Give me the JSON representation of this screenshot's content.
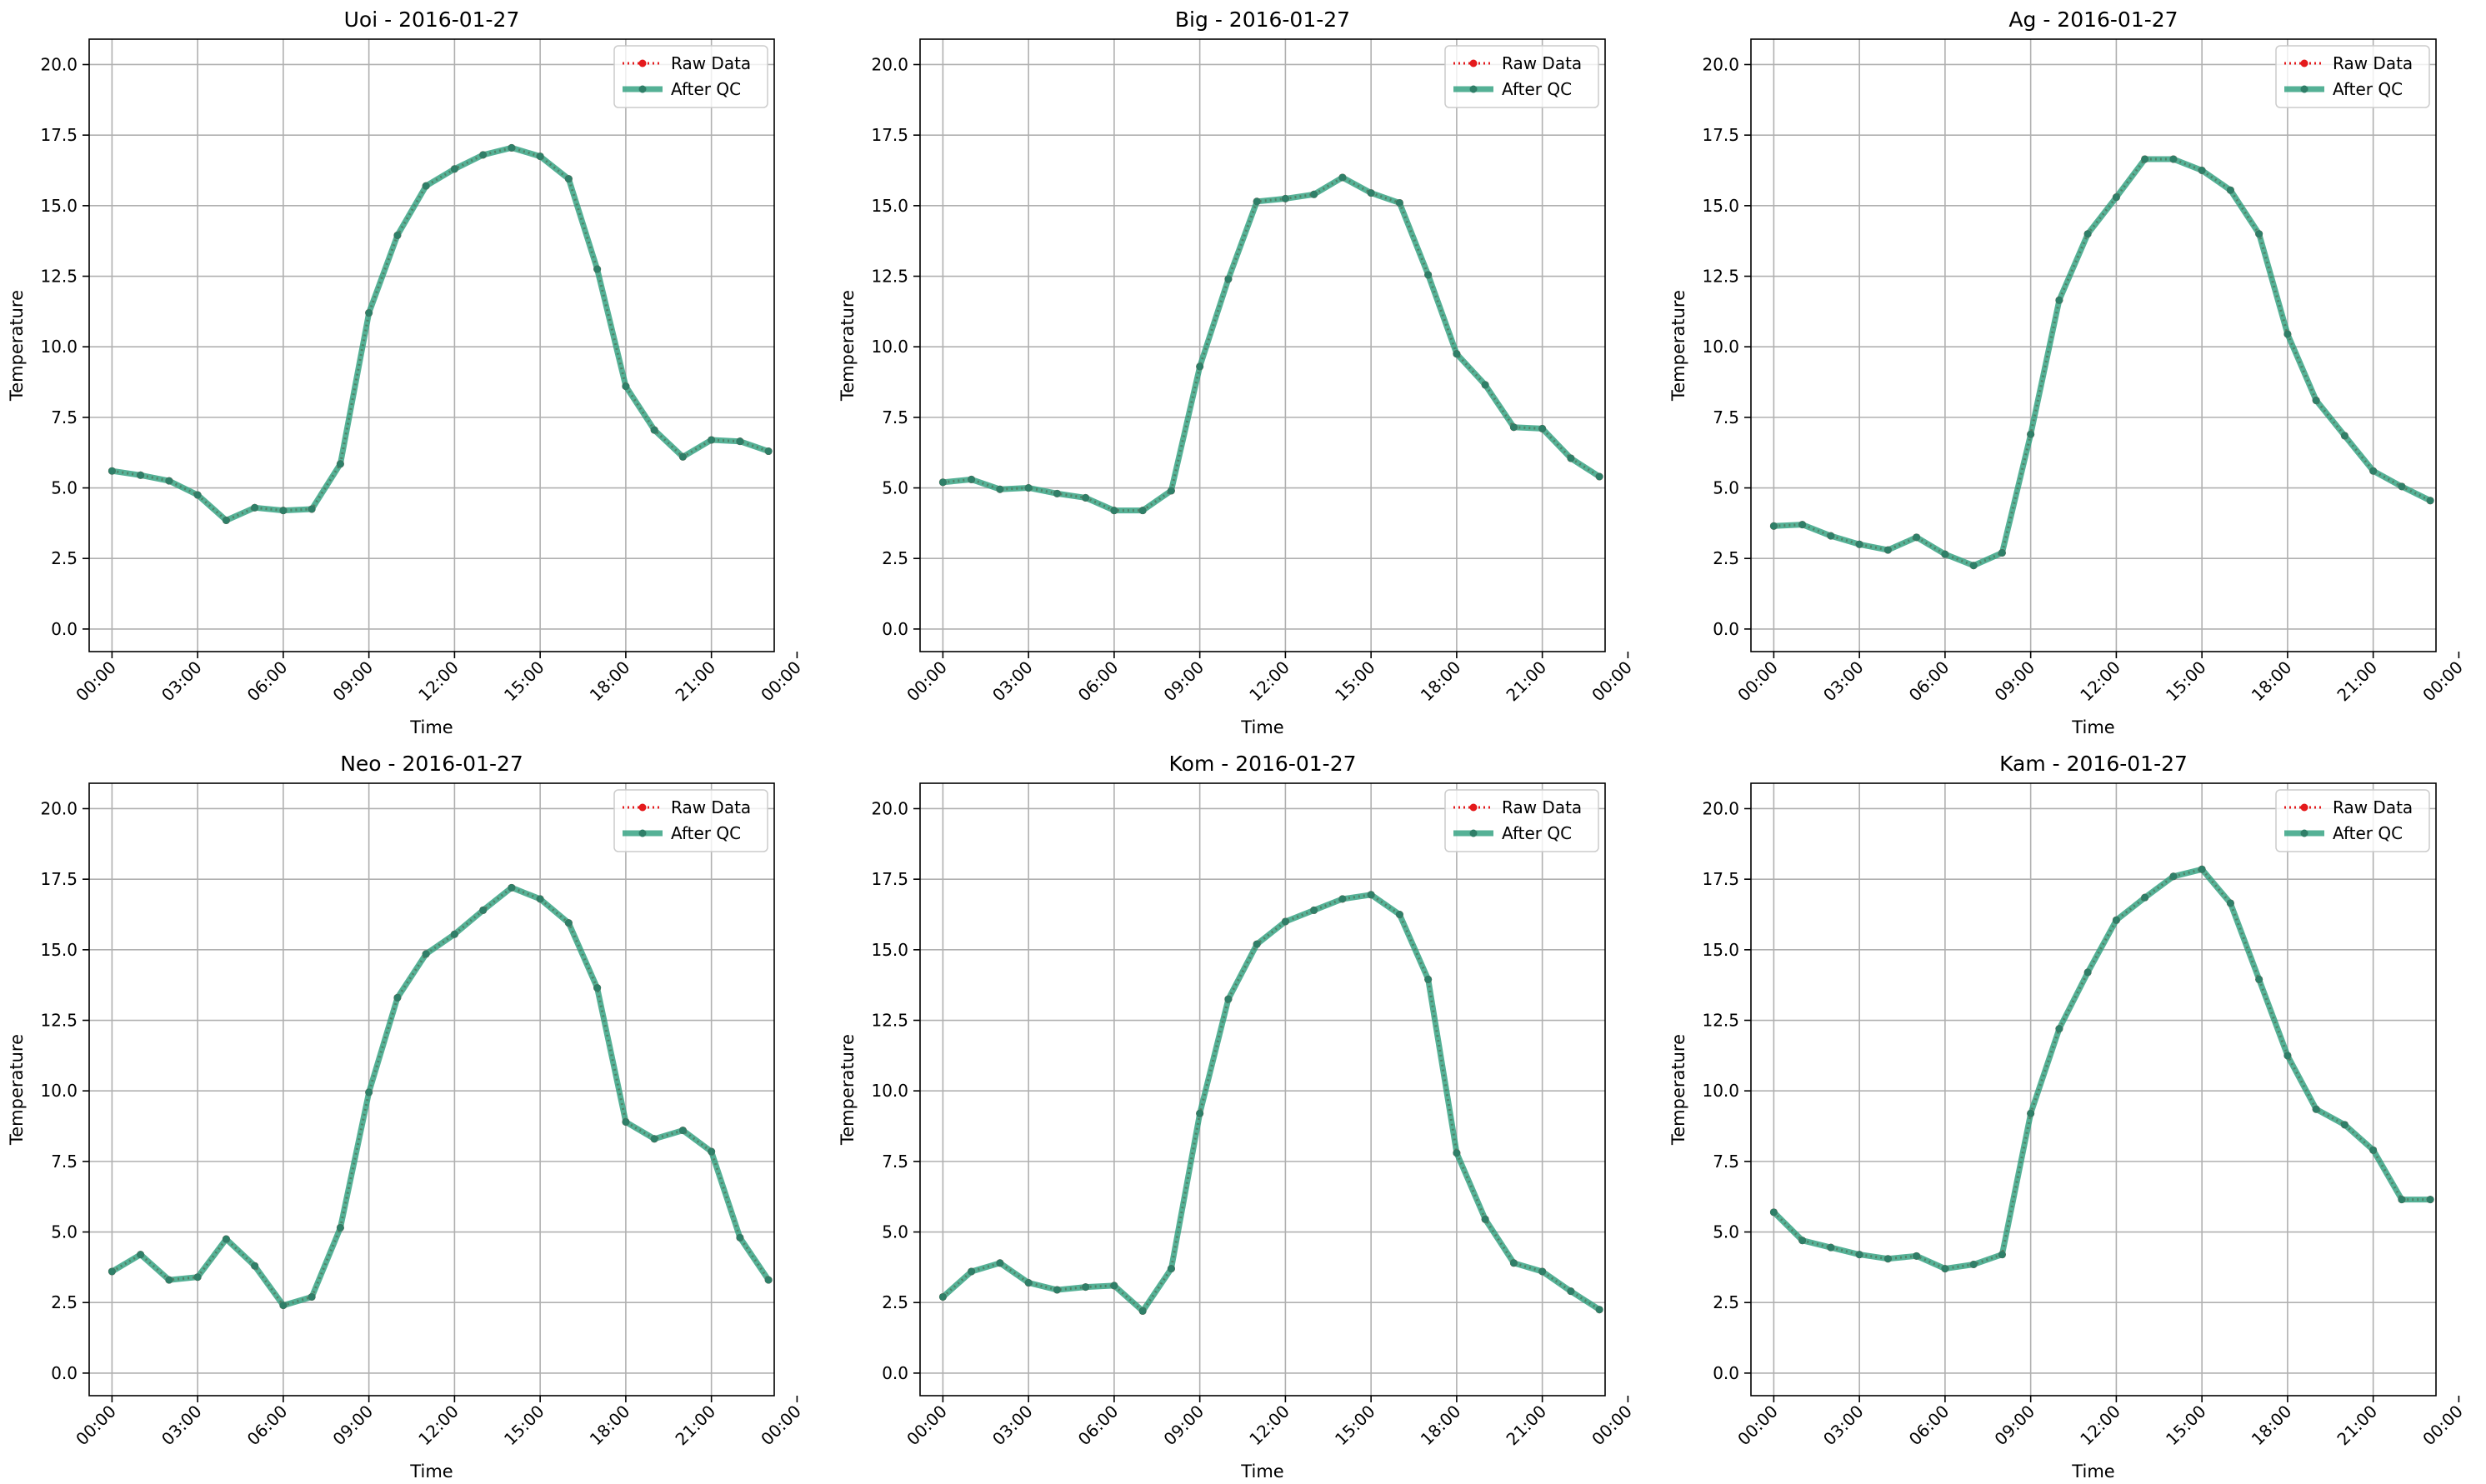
{
  "chart_data": [
    {
      "type": "line",
      "title": "Uoi - 2016-01-27",
      "xlabel": "Time",
      "ylabel": "Temperature",
      "ylim": [
        -0.8,
        20.9
      ],
      "xlim": [
        -0.8,
        23.2
      ],
      "x": [
        0,
        1,
        2,
        3,
        4,
        5,
        6,
        7,
        8,
        9,
        10,
        11,
        12,
        13,
        14,
        15,
        16,
        17,
        18,
        19,
        20,
        21,
        22,
        23
      ],
      "x_ticks": [
        0,
        3,
        6,
        9,
        12,
        15,
        18,
        21,
        24
      ],
      "x_tick_labels": [
        "00:00",
        "03:00",
        "06:00",
        "09:00",
        "12:00",
        "15:00",
        "18:00",
        "21:00",
        "00:00"
      ],
      "y_ticks": [
        0,
        2.5,
        5,
        7.5,
        10,
        12.5,
        15,
        17.5,
        20
      ],
      "y_tick_labels": [
        "0.0",
        "2.5",
        "5.0",
        "7.5",
        "10.0",
        "12.5",
        "15.0",
        "17.5",
        "20.0"
      ],
      "grid": true,
      "legend_position": "top-right",
      "series": [
        {
          "name": "Raw Data",
          "color": "#e41a1c",
          "style": "dotted",
          "values": [
            5.6,
            5.45,
            5.25,
            4.75,
            3.85,
            4.3,
            4.2,
            4.25,
            5.85,
            11.2,
            13.95,
            15.7,
            16.3,
            16.8,
            17.05,
            16.75,
            15.95,
            12.75,
            8.6,
            7.05,
            6.1,
            6.7,
            6.65,
            6.3
          ]
        },
        {
          "name": "After QC",
          "color": "#2a9d7c",
          "style": "solid",
          "values": [
            5.6,
            5.45,
            5.25,
            4.75,
            3.85,
            4.3,
            4.2,
            4.25,
            5.85,
            11.2,
            13.95,
            15.7,
            16.3,
            16.8,
            17.05,
            16.75,
            15.95,
            12.75,
            8.6,
            7.05,
            6.1,
            6.7,
            6.65,
            6.3
          ]
        }
      ]
    },
    {
      "type": "line",
      "title": "Big - 2016-01-27",
      "xlabel": "Time",
      "ylabel": "Temperature",
      "ylim": [
        -0.8,
        20.9
      ],
      "xlim": [
        -0.8,
        23.2
      ],
      "x": [
        0,
        1,
        2,
        3,
        4,
        5,
        6,
        7,
        8,
        9,
        10,
        11,
        12,
        13,
        14,
        15,
        16,
        17,
        18,
        19,
        20,
        21,
        22,
        23
      ],
      "x_ticks": [
        0,
        3,
        6,
        9,
        12,
        15,
        18,
        21,
        24
      ],
      "x_tick_labels": [
        "00:00",
        "03:00",
        "06:00",
        "09:00",
        "12:00",
        "15:00",
        "18:00",
        "21:00",
        "00:00"
      ],
      "y_ticks": [
        0,
        2.5,
        5,
        7.5,
        10,
        12.5,
        15,
        17.5,
        20
      ],
      "y_tick_labels": [
        "0.0",
        "2.5",
        "5.0",
        "7.5",
        "10.0",
        "12.5",
        "15.0",
        "17.5",
        "20.0"
      ],
      "grid": true,
      "legend_position": "top-right",
      "series": [
        {
          "name": "Raw Data",
          "color": "#e41a1c",
          "style": "dotted",
          "values": [
            5.2,
            5.3,
            4.95,
            5.0,
            4.8,
            4.65,
            4.2,
            4.2,
            4.9,
            9.3,
            12.4,
            15.15,
            15.25,
            15.4,
            16.0,
            15.45,
            15.1,
            12.55,
            9.75,
            8.65,
            7.15,
            7.1,
            6.05,
            5.4
          ]
        },
        {
          "name": "After QC",
          "color": "#2a9d7c",
          "style": "solid",
          "values": [
            5.2,
            5.3,
            4.95,
            5.0,
            4.8,
            4.65,
            4.2,
            4.2,
            4.9,
            9.3,
            12.4,
            15.15,
            15.25,
            15.4,
            16.0,
            15.45,
            15.1,
            12.55,
            9.75,
            8.65,
            7.15,
            7.1,
            6.05,
            5.4
          ]
        }
      ]
    },
    {
      "type": "line",
      "title": "Ag - 2016-01-27",
      "xlabel": "Time",
      "ylabel": "Temperature",
      "ylim": [
        -0.8,
        20.9
      ],
      "xlim": [
        -0.8,
        23.2
      ],
      "x": [
        0,
        1,
        2,
        3,
        4,
        5,
        6,
        7,
        8,
        9,
        10,
        11,
        12,
        13,
        14,
        15,
        16,
        17,
        18,
        19,
        20,
        21,
        22,
        23
      ],
      "x_ticks": [
        0,
        3,
        6,
        9,
        12,
        15,
        18,
        21,
        24
      ],
      "x_tick_labels": [
        "00:00",
        "03:00",
        "06:00",
        "09:00",
        "12:00",
        "15:00",
        "18:00",
        "21:00",
        "00:00"
      ],
      "y_ticks": [
        0,
        2.5,
        5,
        7.5,
        10,
        12.5,
        15,
        17.5,
        20
      ],
      "y_tick_labels": [
        "0.0",
        "2.5",
        "5.0",
        "7.5",
        "10.0",
        "12.5",
        "15.0",
        "17.5",
        "20.0"
      ],
      "grid": true,
      "legend_position": "top-right",
      "series": [
        {
          "name": "Raw Data",
          "color": "#e41a1c",
          "style": "dotted",
          "values": [
            3.65,
            3.7,
            3.3,
            3.0,
            2.8,
            3.25,
            2.65,
            2.25,
            2.7,
            6.9,
            11.65,
            14.0,
            15.3,
            16.65,
            16.65,
            16.25,
            15.55,
            14.0,
            10.45,
            8.1,
            6.85,
            5.6,
            5.05,
            4.55
          ]
        },
        {
          "name": "After QC",
          "color": "#2a9d7c",
          "style": "solid",
          "values": [
            3.65,
            3.7,
            3.3,
            3.0,
            2.8,
            3.25,
            2.65,
            2.25,
            2.7,
            6.9,
            11.65,
            14.0,
            15.3,
            16.65,
            16.65,
            16.25,
            15.55,
            14.0,
            10.45,
            8.1,
            6.85,
            5.6,
            5.05,
            4.55
          ]
        }
      ]
    },
    {
      "type": "line",
      "title": "Neo - 2016-01-27",
      "xlabel": "Time",
      "ylabel": "Temperature",
      "ylim": [
        -0.8,
        20.9
      ],
      "xlim": [
        -0.8,
        23.2
      ],
      "x": [
        0,
        1,
        2,
        3,
        4,
        5,
        6,
        7,
        8,
        9,
        10,
        11,
        12,
        13,
        14,
        15,
        16,
        17,
        18,
        19,
        20,
        21,
        22,
        23
      ],
      "x_ticks": [
        0,
        3,
        6,
        9,
        12,
        15,
        18,
        21,
        24
      ],
      "x_tick_labels": [
        "00:00",
        "03:00",
        "06:00",
        "09:00",
        "12:00",
        "15:00",
        "18:00",
        "21:00",
        "00:00"
      ],
      "y_ticks": [
        0,
        2.5,
        5,
        7.5,
        10,
        12.5,
        15,
        17.5,
        20
      ],
      "y_tick_labels": [
        "0.0",
        "2.5",
        "5.0",
        "7.5",
        "10.0",
        "12.5",
        "15.0",
        "17.5",
        "20.0"
      ],
      "grid": true,
      "legend_position": "top-right",
      "series": [
        {
          "name": "Raw Data",
          "color": "#e41a1c",
          "style": "dotted",
          "values": [
            3.6,
            4.2,
            3.3,
            3.4,
            4.75,
            3.8,
            2.4,
            2.7,
            5.15,
            9.95,
            13.3,
            14.85,
            15.55,
            16.4,
            17.2,
            16.8,
            15.95,
            13.65,
            8.9,
            8.3,
            8.6,
            7.85,
            4.8,
            3.3
          ]
        },
        {
          "name": "After QC",
          "color": "#2a9d7c",
          "style": "solid",
          "values": [
            3.6,
            4.2,
            3.3,
            3.4,
            4.75,
            3.8,
            2.4,
            2.7,
            5.15,
            9.95,
            13.3,
            14.85,
            15.55,
            16.4,
            17.2,
            16.8,
            15.95,
            13.65,
            8.9,
            8.3,
            8.6,
            7.85,
            4.8,
            3.3
          ]
        }
      ]
    },
    {
      "type": "line",
      "title": "Kom - 2016-01-27",
      "xlabel": "Time",
      "ylabel": "Temperature",
      "ylim": [
        -0.8,
        20.9
      ],
      "xlim": [
        -0.8,
        23.2
      ],
      "x": [
        0,
        1,
        2,
        3,
        4,
        5,
        6,
        7,
        8,
        9,
        10,
        11,
        12,
        13,
        14,
        15,
        16,
        17,
        18,
        19,
        20,
        21,
        22,
        23
      ],
      "x_ticks": [
        0,
        3,
        6,
        9,
        12,
        15,
        18,
        21,
        24
      ],
      "x_tick_labels": [
        "00:00",
        "03:00",
        "06:00",
        "09:00",
        "12:00",
        "15:00",
        "18:00",
        "21:00",
        "00:00"
      ],
      "y_ticks": [
        0,
        2.5,
        5,
        7.5,
        10,
        12.5,
        15,
        17.5,
        20
      ],
      "y_tick_labels": [
        "0.0",
        "2.5",
        "5.0",
        "7.5",
        "10.0",
        "12.5",
        "15.0",
        "17.5",
        "20.0"
      ],
      "grid": true,
      "legend_position": "top-right",
      "series": [
        {
          "name": "Raw Data",
          "color": "#e41a1c",
          "style": "dotted",
          "values": [
            2.7,
            3.6,
            3.9,
            3.2,
            2.95,
            3.05,
            3.1,
            2.2,
            3.7,
            9.2,
            13.25,
            15.2,
            16.0,
            16.4,
            16.8,
            16.95,
            16.25,
            13.95,
            7.8,
            5.45,
            3.9,
            3.6,
            2.9,
            2.25
          ]
        },
        {
          "name": "After QC",
          "color": "#2a9d7c",
          "style": "solid",
          "values": [
            2.7,
            3.6,
            3.9,
            3.2,
            2.95,
            3.05,
            3.1,
            2.2,
            3.7,
            9.2,
            13.25,
            15.2,
            16.0,
            16.4,
            16.8,
            16.95,
            16.25,
            13.95,
            7.8,
            5.45,
            3.9,
            3.6,
            2.9,
            2.25
          ]
        }
      ]
    },
    {
      "type": "line",
      "title": "Kam - 2016-01-27",
      "xlabel": "Time",
      "ylabel": "Temperature",
      "ylim": [
        -0.8,
        20.9
      ],
      "xlim": [
        -0.8,
        23.2
      ],
      "x": [
        0,
        1,
        2,
        3,
        4,
        5,
        6,
        7,
        8,
        9,
        10,
        11,
        12,
        13,
        14,
        15,
        16,
        17,
        18,
        19,
        20,
        21,
        22,
        23
      ],
      "x_ticks": [
        0,
        3,
        6,
        9,
        12,
        15,
        18,
        21,
        24
      ],
      "x_tick_labels": [
        "00:00",
        "03:00",
        "06:00",
        "09:00",
        "12:00",
        "15:00",
        "18:00",
        "21:00",
        "00:00"
      ],
      "y_ticks": [
        0,
        2.5,
        5,
        7.5,
        10,
        12.5,
        15,
        17.5,
        20
      ],
      "y_tick_labels": [
        "0.0",
        "2.5",
        "5.0",
        "7.5",
        "10.0",
        "12.5",
        "15.0",
        "17.5",
        "20.0"
      ],
      "grid": true,
      "legend_position": "top-right",
      "series": [
        {
          "name": "Raw Data",
          "color": "#e41a1c",
          "style": "dotted",
          "values": [
            5.7,
            4.7,
            4.45,
            4.2,
            4.05,
            4.15,
            3.7,
            3.85,
            4.2,
            9.2,
            12.2,
            14.2,
            16.05,
            16.85,
            17.6,
            17.85,
            16.65,
            13.95,
            11.25,
            9.35,
            8.8,
            7.9,
            6.15,
            6.15
          ]
        },
        {
          "name": "After QC",
          "color": "#2a9d7c",
          "style": "solid",
          "values": [
            5.7,
            4.7,
            4.45,
            4.2,
            4.05,
            4.15,
            3.7,
            3.85,
            4.2,
            9.2,
            12.2,
            14.2,
            16.05,
            16.85,
            17.6,
            17.85,
            16.65,
            13.95,
            11.25,
            9.35,
            8.8,
            7.9,
            6.15,
            6.15
          ]
        }
      ]
    }
  ]
}
